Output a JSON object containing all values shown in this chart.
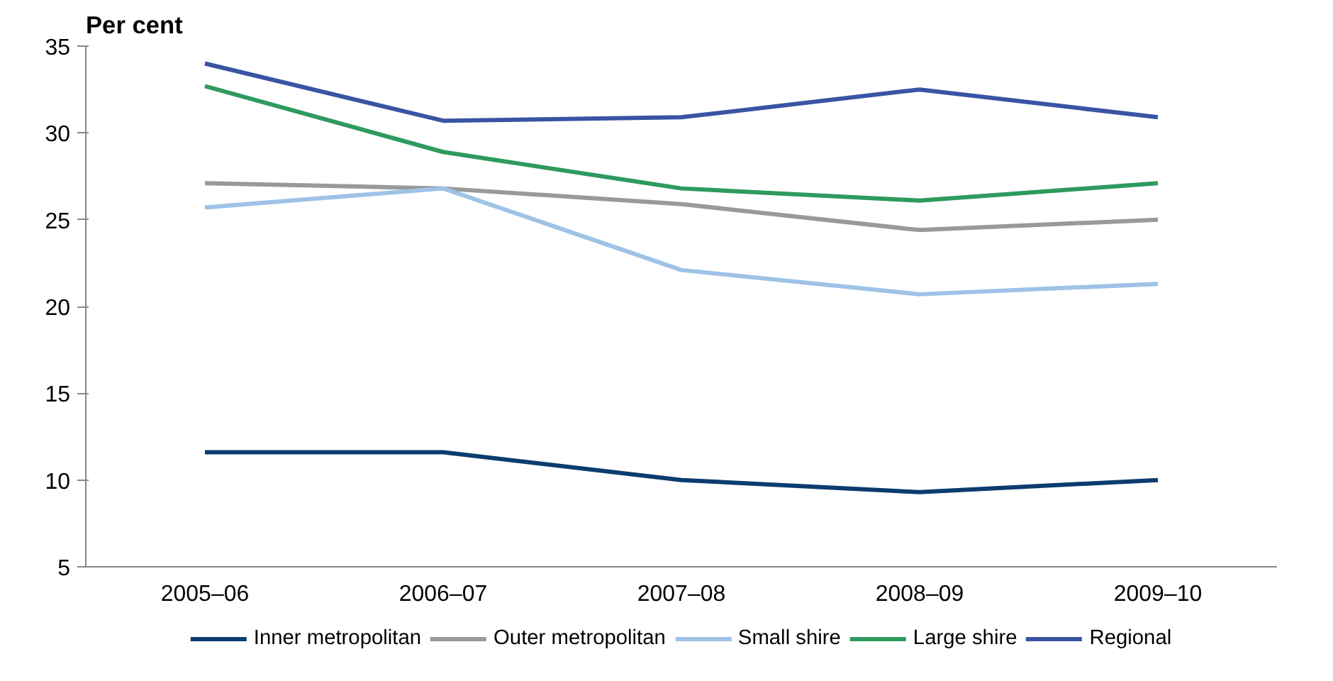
{
  "chart_data": {
    "type": "line",
    "ylabel": "Per cent",
    "categories": [
      "2005–06",
      "2006–07",
      "2007–08",
      "2008–09",
      "2009–10"
    ],
    "series": [
      {
        "name": "Inner metropolitan",
        "color": "#0b3c6e",
        "values": [
          11.6,
          11.6,
          10.0,
          9.3,
          10.0
        ]
      },
      {
        "name": "Outer metropolitan",
        "color": "#999999",
        "values": [
          27.1,
          26.8,
          25.9,
          24.4,
          25.0
        ]
      },
      {
        "name": "Small shire",
        "color": "#9dc3e6",
        "values": [
          25.7,
          26.8,
          22.1,
          20.7,
          21.3
        ]
      },
      {
        "name": "Large shire",
        "color": "#2e9a5e",
        "values": [
          32.7,
          28.9,
          26.8,
          26.1,
          27.1
        ]
      },
      {
        "name": "Regional",
        "color": "#3a54a4",
        "values": [
          34.0,
          30.7,
          30.9,
          32.5,
          30.9
        ]
      }
    ],
    "ylim": [
      5,
      35
    ],
    "yticks": [
      5,
      10,
      15,
      20,
      25,
      30,
      35
    ],
    "grid": false,
    "legend": "bottom",
    "marker": "none",
    "line_style": "solid"
  }
}
